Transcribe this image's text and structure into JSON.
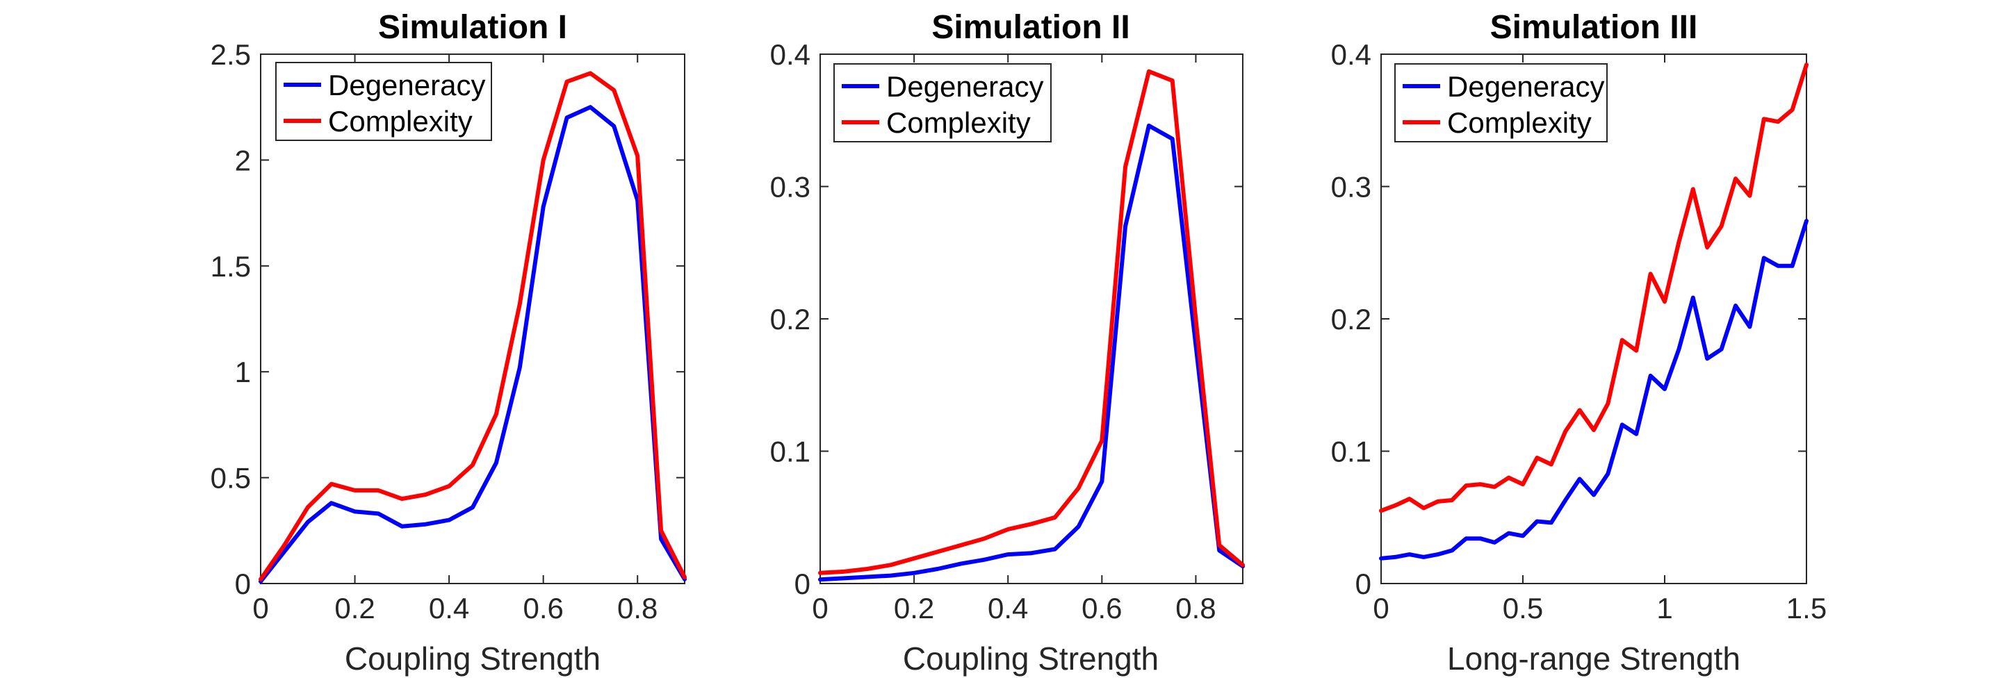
{
  "chart_data": [
    {
      "type": "line",
      "title": "Simulation I",
      "xlabel": "Coupling Strength",
      "ylabel": "",
      "xlim": [
        0,
        0.9
      ],
      "ylim": [
        0,
        2.5
      ],
      "xticks": [
        0,
        0.2,
        0.4,
        0.6,
        0.8
      ],
      "xtick_labels": [
        "0",
        "0.2",
        "0.4",
        "0.6",
        "0.8"
      ],
      "yticks": [
        0,
        0.5,
        1,
        1.5,
        2,
        2.5
      ],
      "ytick_labels": [
        "0",
        "0.5",
        "1",
        "1.5",
        "2",
        "2.5"
      ],
      "legend_position": "top-left",
      "x": [
        0,
        0.05,
        0.1,
        0.15,
        0.2,
        0.25,
        0.3,
        0.35,
        0.4,
        0.45,
        0.5,
        0.55,
        0.6,
        0.65,
        0.7,
        0.75,
        0.8,
        0.85,
        0.9
      ],
      "series": [
        {
          "name": "Degeneracy",
          "color": "#0000ff",
          "values": [
            0.01,
            0.15,
            0.29,
            0.38,
            0.34,
            0.33,
            0.27,
            0.28,
            0.3,
            0.36,
            0.57,
            1.02,
            1.78,
            2.2,
            2.25,
            2.16,
            1.81,
            0.21,
            0.02
          ]
        },
        {
          "name": "Complexity",
          "color": "#ff0000",
          "values": [
            0.02,
            0.18,
            0.36,
            0.47,
            0.44,
            0.44,
            0.4,
            0.42,
            0.46,
            0.56,
            0.8,
            1.32,
            2.0,
            2.37,
            2.41,
            2.33,
            2.02,
            0.25,
            0.03
          ]
        }
      ]
    },
    {
      "type": "line",
      "title": "Simulation II",
      "xlabel": "Coupling Strength",
      "ylabel": "",
      "xlim": [
        0,
        0.9
      ],
      "ylim": [
        0,
        0.4
      ],
      "xticks": [
        0,
        0.2,
        0.4,
        0.6,
        0.8
      ],
      "xtick_labels": [
        "0",
        "0.2",
        "0.4",
        "0.6",
        "0.8"
      ],
      "yticks": [
        0,
        0.1,
        0.2,
        0.3,
        0.4
      ],
      "ytick_labels": [
        "0",
        "0.1",
        "0.2",
        "0.3",
        "0.4"
      ],
      "legend_position": "top-left",
      "x": [
        0,
        0.05,
        0.1,
        0.15,
        0.2,
        0.25,
        0.3,
        0.35,
        0.4,
        0.45,
        0.5,
        0.55,
        0.6,
        0.65,
        0.7,
        0.75,
        0.8,
        0.85,
        0.9
      ],
      "series": [
        {
          "name": "Degeneracy",
          "color": "#0000ff",
          "values": [
            0.003,
            0.004,
            0.005,
            0.006,
            0.008,
            0.011,
            0.015,
            0.018,
            0.022,
            0.023,
            0.026,
            0.043,
            0.077,
            0.27,
            0.346,
            0.336,
            0.18,
            0.025,
            0.013
          ]
        },
        {
          "name": "Complexity",
          "color": "#ff0000",
          "values": [
            0.008,
            0.009,
            0.011,
            0.014,
            0.019,
            0.024,
            0.029,
            0.034,
            0.041,
            0.045,
            0.05,
            0.072,
            0.108,
            0.315,
            0.387,
            0.38,
            0.2,
            0.029,
            0.014
          ]
        }
      ]
    },
    {
      "type": "line",
      "title": "Simulation III",
      "xlabel": "Long-range Strength",
      "ylabel": "",
      "xlim": [
        0,
        1.5
      ],
      "ylim": [
        0,
        0.4
      ],
      "xticks": [
        0,
        0.5,
        1,
        1.5
      ],
      "xtick_labels": [
        "0",
        "0.5",
        "1",
        "1.5"
      ],
      "yticks": [
        0,
        0.1,
        0.2,
        0.3,
        0.4
      ],
      "ytick_labels": [
        "0",
        "0.1",
        "0.2",
        "0.3",
        "0.4"
      ],
      "legend_position": "top-left",
      "x": [
        0,
        0.05,
        0.1,
        0.15,
        0.2,
        0.25,
        0.3,
        0.35,
        0.4,
        0.45,
        0.5,
        0.55,
        0.6,
        0.65,
        0.7,
        0.75,
        0.8,
        0.85,
        0.9,
        0.95,
        1.0,
        1.05,
        1.1,
        1.15,
        1.2,
        1.25,
        1.3,
        1.35,
        1.4,
        1.45,
        1.5
      ],
      "series": [
        {
          "name": "Degeneracy",
          "color": "#0000ff",
          "values": [
            0.019,
            0.02,
            0.022,
            0.02,
            0.022,
            0.025,
            0.034,
            0.034,
            0.031,
            0.038,
            0.036,
            0.047,
            0.046,
            0.063,
            0.079,
            0.067,
            0.083,
            0.12,
            0.113,
            0.157,
            0.147,
            0.177,
            0.216,
            0.17,
            0.177,
            0.21,
            0.194,
            0.246,
            0.24,
            0.24,
            0.274
          ]
        },
        {
          "name": "Complexity",
          "color": "#ff0000",
          "values": [
            0.055,
            0.059,
            0.064,
            0.057,
            0.062,
            0.063,
            0.074,
            0.075,
            0.073,
            0.08,
            0.075,
            0.095,
            0.09,
            0.115,
            0.131,
            0.116,
            0.136,
            0.184,
            0.176,
            0.234,
            0.213,
            0.258,
            0.298,
            0.254,
            0.27,
            0.306,
            0.293,
            0.351,
            0.349,
            0.358,
            0.392
          ]
        }
      ]
    }
  ]
}
